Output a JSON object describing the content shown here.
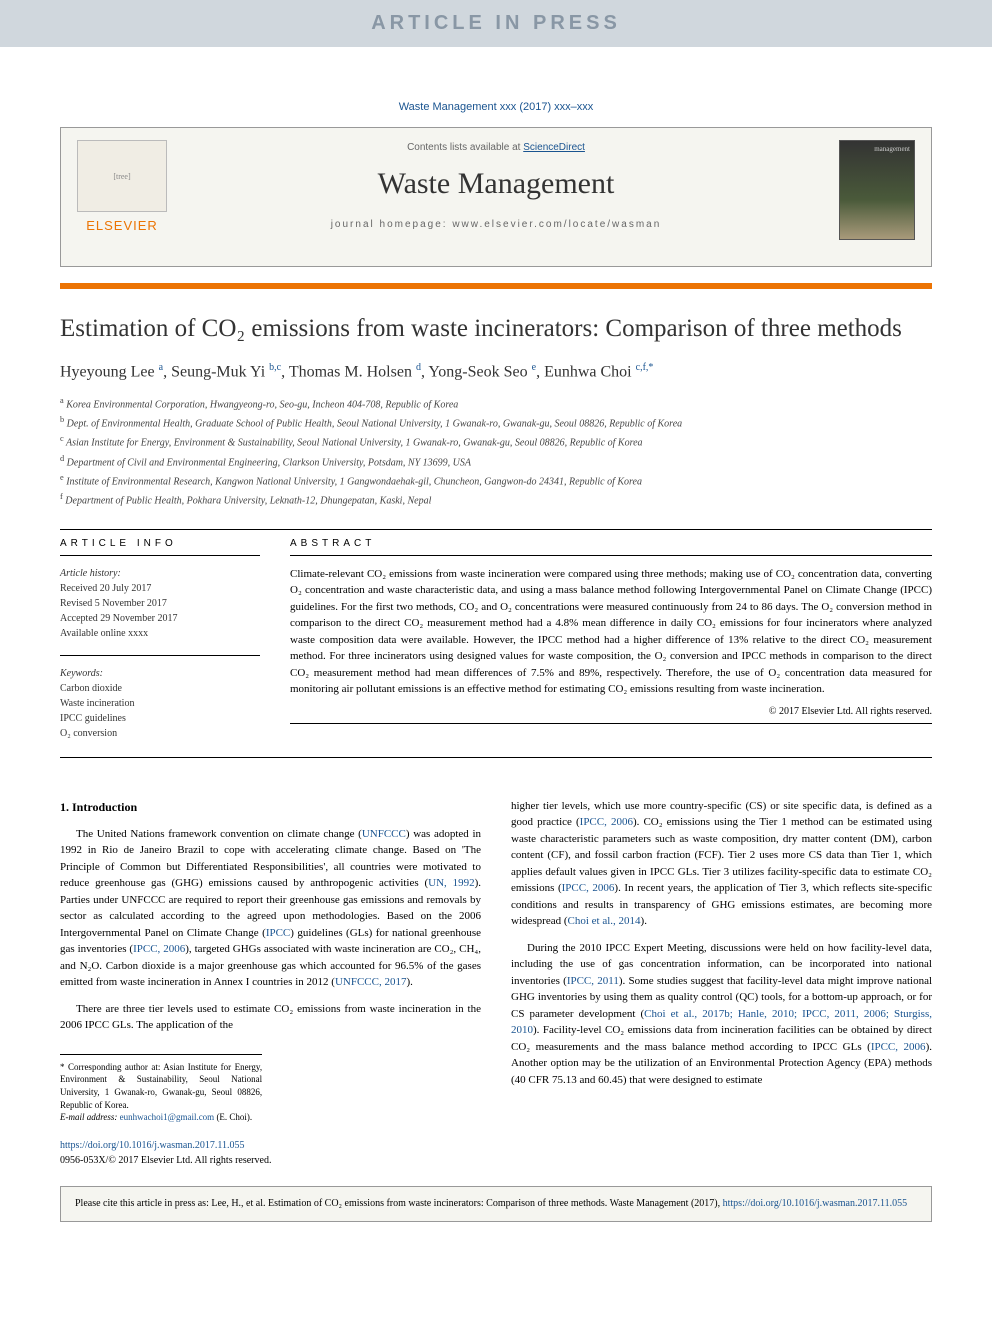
{
  "banner": {
    "text": "ARTICLE IN PRESS"
  },
  "journal_ref": "Waste Management xxx (2017) xxx–xxx",
  "header": {
    "contents_prefix": "Contents lists available at ",
    "contents_link": "ScienceDirect",
    "journal_name": "Waste Management",
    "homepage_prefix": "journal homepage: ",
    "homepage_url": "www.elsevier.com/locate/wasman",
    "publisher": "ELSEVIER"
  },
  "colors": {
    "accent": "#ec7404",
    "link": "#1a5490",
    "banner_bg": "#d0d7dd",
    "banner_fg": "#8997a5",
    "header_bg": "#f5f5f0"
  },
  "article": {
    "title": "Estimation of CO₂ emissions from waste incinerators: Comparison of three methods",
    "authors_html": "Hyeyoung Lee <sup>a</sup>, Seung-Muk Yi <sup>b,c</sup>, Thomas M. Holsen <sup>d</sup>, Yong-Seok Seo <sup>e</sup>, Eunhwa Choi <sup>c,f,*</sup>",
    "affiliations": [
      {
        "key": "a",
        "text": "Korea Environmental Corporation, Hwangyeong-ro, Seo-gu, Incheon 404-708, Republic of Korea"
      },
      {
        "key": "b",
        "text": "Dept. of Environmental Health, Graduate School of Public Health, Seoul National University, 1 Gwanak-ro, Gwanak-gu, Seoul 08826, Republic of Korea"
      },
      {
        "key": "c",
        "text": "Asian Institute for Energy, Environment & Sustainability, Seoul National University, 1 Gwanak-ro, Gwanak-gu, Seoul 08826, Republic of Korea"
      },
      {
        "key": "d",
        "text": "Department of Civil and Environmental Engineering, Clarkson University, Potsdam, NY 13699, USA"
      },
      {
        "key": "e",
        "text": "Institute of Environmental Research, Kangwon National University, 1 Gangwondaehak-gil, Chuncheon, Gangwon-do 24341, Republic of Korea"
      },
      {
        "key": "f",
        "text": "Department of Public Health, Pokhara University, Leknath-12, Dhungepatan, Kaski, Nepal"
      }
    ]
  },
  "info": {
    "label": "ARTICLE INFO",
    "history_label": "Article history:",
    "history": [
      "Received 20 July 2017",
      "Revised 5 November 2017",
      "Accepted 29 November 2017",
      "Available online xxxx"
    ],
    "keywords_label": "Keywords:",
    "keywords": [
      "Carbon dioxide",
      "Waste incineration",
      "IPCC guidelines",
      "O₂ conversion"
    ]
  },
  "abstract": {
    "label": "ABSTRACT",
    "text": "Climate-relevant CO₂ emissions from waste incineration were compared using three methods; making use of CO₂ concentration data, converting O₂ concentration and waste characteristic data, and using a mass balance method following Intergovernmental Panel on Climate Change (IPCC) guidelines. For the first two methods, CO₂ and O₂ concentrations were measured continuously from 24 to 86 days. The O₂ conversion method in comparison to the direct CO₂ measurement method had a 4.8% mean difference in daily CO₂ emissions for four incinerators where analyzed waste composition data were available. However, the IPCC method had a higher difference of 13% relative to the direct CO₂ measurement method. For three incinerators using designed values for waste composition, the O₂ conversion and IPCC methods in comparison to the direct CO₂ measurement method had mean differences of 7.5% and 89%, respectively. Therefore, the use of O₂ concentration data measured for monitoring air pollutant emissions is an effective method for estimating CO₂ emissions resulting from waste incineration.",
    "copyright": "© 2017 Elsevier Ltd. All rights reserved."
  },
  "body": {
    "section1_heading": "1. Introduction",
    "col1_p1": "The United Nations framework convention on climate change (UNFCCC) was adopted in 1992 in Rio de Janeiro Brazil to cope with accelerating climate change. Based on 'The Principle of Common but Differentiated Responsibilities', all countries were motivated to reduce greenhouse gas (GHG) emissions caused by anthropogenic activities (UN, 1992). Parties under UNFCCC are required to report their greenhouse gas emissions and removals by sector as calculated according to the agreed upon methodologies. Based on the 2006 Intergovernmental Panel on Climate Change (IPCC) guidelines (GLs) for national greenhouse gas inventories (IPCC, 2006), targeted GHGs associated with waste incineration are CO₂, CH₄, and N₂O. Carbon dioxide is a major greenhouse gas which accounted for 96.5% of the gases emitted from waste incineration in Annex I countries in 2012 (UNFCCC, 2017).",
    "col1_p2": "There are three tier levels used to estimate CO₂ emissions from waste incineration in the 2006 IPCC GLs. The application of the",
    "col2_p1": "higher tier levels, which use more country-specific (CS) or site specific data, is defined as a good practice (IPCC, 2006). CO₂ emissions using the Tier 1 method can be estimated using waste characteristic parameters such as waste composition, dry matter content (DM), carbon content (CF), and fossil carbon fraction (FCF). Tier 2 uses more CS data than Tier 1, which applies default values given in IPCC GLs. Tier 3 utilizes facility-specific data to estimate CO₂ emissions (IPCC, 2006). In recent years, the application of Tier 3, which reflects site-specific conditions and results in transparency of GHG emissions estimates, are becoming more widespread (Choi et al., 2014).",
    "col2_p2": "During the 2010 IPCC Expert Meeting, discussions were held on how facility-level data, including the use of gas concentration information, can be incorporated into national inventories (IPCC, 2011). Some studies suggest that facility-level data might improve national GHG inventories by using them as quality control (QC) tools, for a bottom-up approach, or for CS parameter development (Choi et al., 2017b; Hanle, 2010; IPCC, 2011, 2006; Sturgiss, 2010). Facility-level CO₂ emissions data from incineration facilities can be obtained by direct CO₂ measurements and the mass balance method according to IPCC GLs (IPCC, 2006). Another option may be the utilization of an Environmental Protection Agency (EPA) methods (40 CFR 75.13 and 60.45) that were designed to estimate"
  },
  "footnotes": {
    "corresponding": "* Corresponding author at: Asian Institute for Energy, Environment & Sustainability, Seoul National University, 1 Gwanak-ro, Gwanak-gu, Seoul 08826, Republic of Korea.",
    "email_label": "E-mail address: ",
    "email": "eunhwachoi1@gmail.com",
    "email_suffix": " (E. Choi)."
  },
  "doi": {
    "url": "https://doi.org/10.1016/j.wasman.2017.11.055",
    "issn_line": "0956-053X/© 2017 Elsevier Ltd. All rights reserved."
  },
  "citebox": {
    "prefix": "Please cite this article in press as: Lee, H., et al. Estimation of CO₂ emissions from waste incinerators: Comparison of three methods. Waste Management (2017), ",
    "url": "https://doi.org/10.1016/j.wasman.2017.11.055"
  }
}
